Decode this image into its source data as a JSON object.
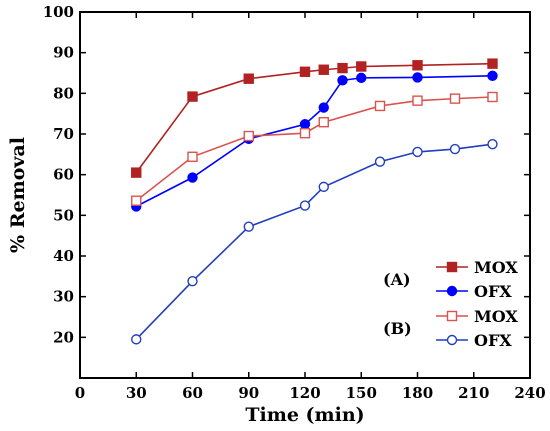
{
  "chart_data": {
    "type": "line",
    "xlabel": "Time (min)",
    "ylabel": "% Removal",
    "xlim": [
      0,
      240
    ],
    "ylim": [
      10,
      100
    ],
    "xticks": [
      0,
      30,
      60,
      90,
      120,
      150,
      180,
      210,
      240
    ],
    "yticks": [
      20,
      30,
      40,
      50,
      60,
      70,
      80,
      90,
      100
    ],
    "grid": false,
    "legend_position": "bottom-right",
    "legend_groups": [
      "(A)",
      "(B)"
    ],
    "series": [
      {
        "name": "MOX",
        "group": "(A)",
        "color": "#b22222",
        "marker": "square-filled",
        "x": [
          30,
          60,
          90,
          120,
          130,
          140,
          150,
          180,
          220
        ],
        "y": [
          60.5,
          79.2,
          83.6,
          85.3,
          85.8,
          86.2,
          86.6,
          86.9,
          87.3
        ]
      },
      {
        "name": "OFX",
        "group": "(A)",
        "color": "#0000ff",
        "marker": "circle-filled",
        "x": [
          30,
          60,
          90,
          120,
          130,
          140,
          150,
          180,
          220
        ],
        "y": [
          52.2,
          59.3,
          68.8,
          72.4,
          76.5,
          83.2,
          83.8,
          83.9,
          84.3
        ]
      },
      {
        "name": "MOX",
        "group": "(B)",
        "color": "#d9534f",
        "marker": "square-open",
        "x": [
          30,
          60,
          90,
          120,
          130,
          160,
          180,
          200,
          220
        ],
        "y": [
          53.6,
          64.4,
          69.5,
          70.2,
          72.9,
          76.9,
          78.2,
          78.7,
          79.1
        ]
      },
      {
        "name": "OFX",
        "group": "(B)",
        "color": "#1f3fbf",
        "marker": "circle-open",
        "x": [
          30,
          60,
          90,
          120,
          130,
          160,
          180,
          200,
          220
        ],
        "y": [
          19.5,
          33.8,
          47.2,
          52.4,
          57.0,
          63.2,
          65.6,
          66.3,
          67.5
        ]
      }
    ]
  }
}
